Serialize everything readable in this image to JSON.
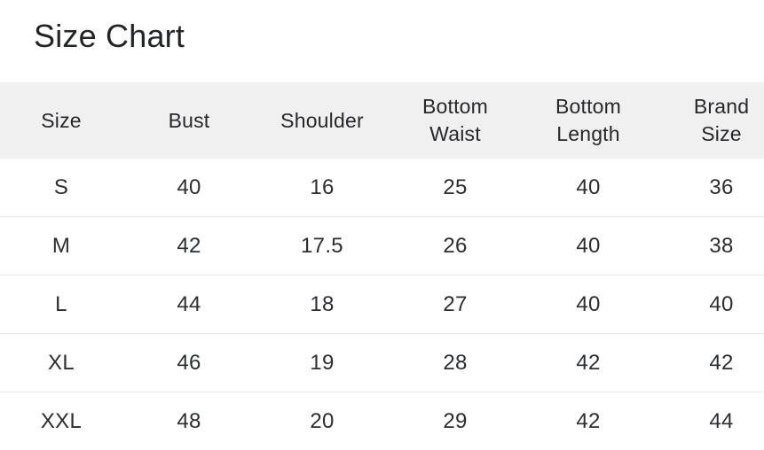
{
  "title": "Size Chart",
  "table": {
    "columns": [
      "Size",
      "Bust",
      "Shoulder",
      "Bottom Waist",
      "Bottom Length",
      "Brand Size"
    ],
    "rows": [
      [
        "S",
        "40",
        "16",
        "25",
        "40",
        "36"
      ],
      [
        "M",
        "42",
        "17.5",
        "26",
        "40",
        "38"
      ],
      [
        "L",
        "44",
        "18",
        "27",
        "40",
        "40"
      ],
      [
        "XL",
        "46",
        "19",
        "28",
        "42",
        "42"
      ],
      [
        "XXL",
        "48",
        "20",
        "29",
        "42",
        "44"
      ]
    ]
  },
  "colors": {
    "header_background": "#f0f0f0",
    "row_divider": "#e9e9ea",
    "title_text": "#212528",
    "cell_text": "#2b2e31",
    "page_background": "#ffffff"
  }
}
